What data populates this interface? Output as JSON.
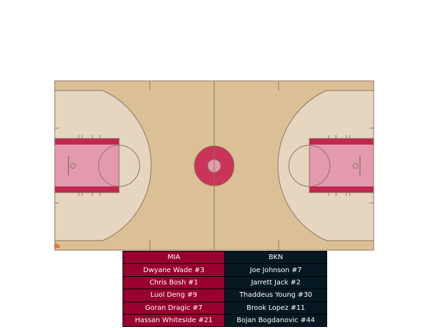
{
  "teams": {
    "home": {
      "abbr": "MIA",
      "color": "#98002e"
    },
    "away": {
      "abbr": "BKN",
      "color": "#061922"
    }
  },
  "lineups": [
    {
      "home": "Dwyane Wade #3",
      "away": "Joe Johnson #7"
    },
    {
      "home": "Chris Bosh #1",
      "away": "Jarrett Jack #2"
    },
    {
      "home": "Luol Deng #9",
      "away": "Thaddeus Young #30"
    },
    {
      "home": "Goran Dragic #7",
      "away": "Brook Lopez #11"
    },
    {
      "home": "Hassan Whiteside #21",
      "away": "Bojan Bogdanovic #44"
    }
  ],
  "court": {
    "wood_color": "#dbc097",
    "three_point_area_color": "#e6d6c0",
    "paint_color": "#e49aae",
    "paint_border_color": "#c0284e",
    "center_circle_color": "#cc3358",
    "line_color": "#8a7260"
  }
}
